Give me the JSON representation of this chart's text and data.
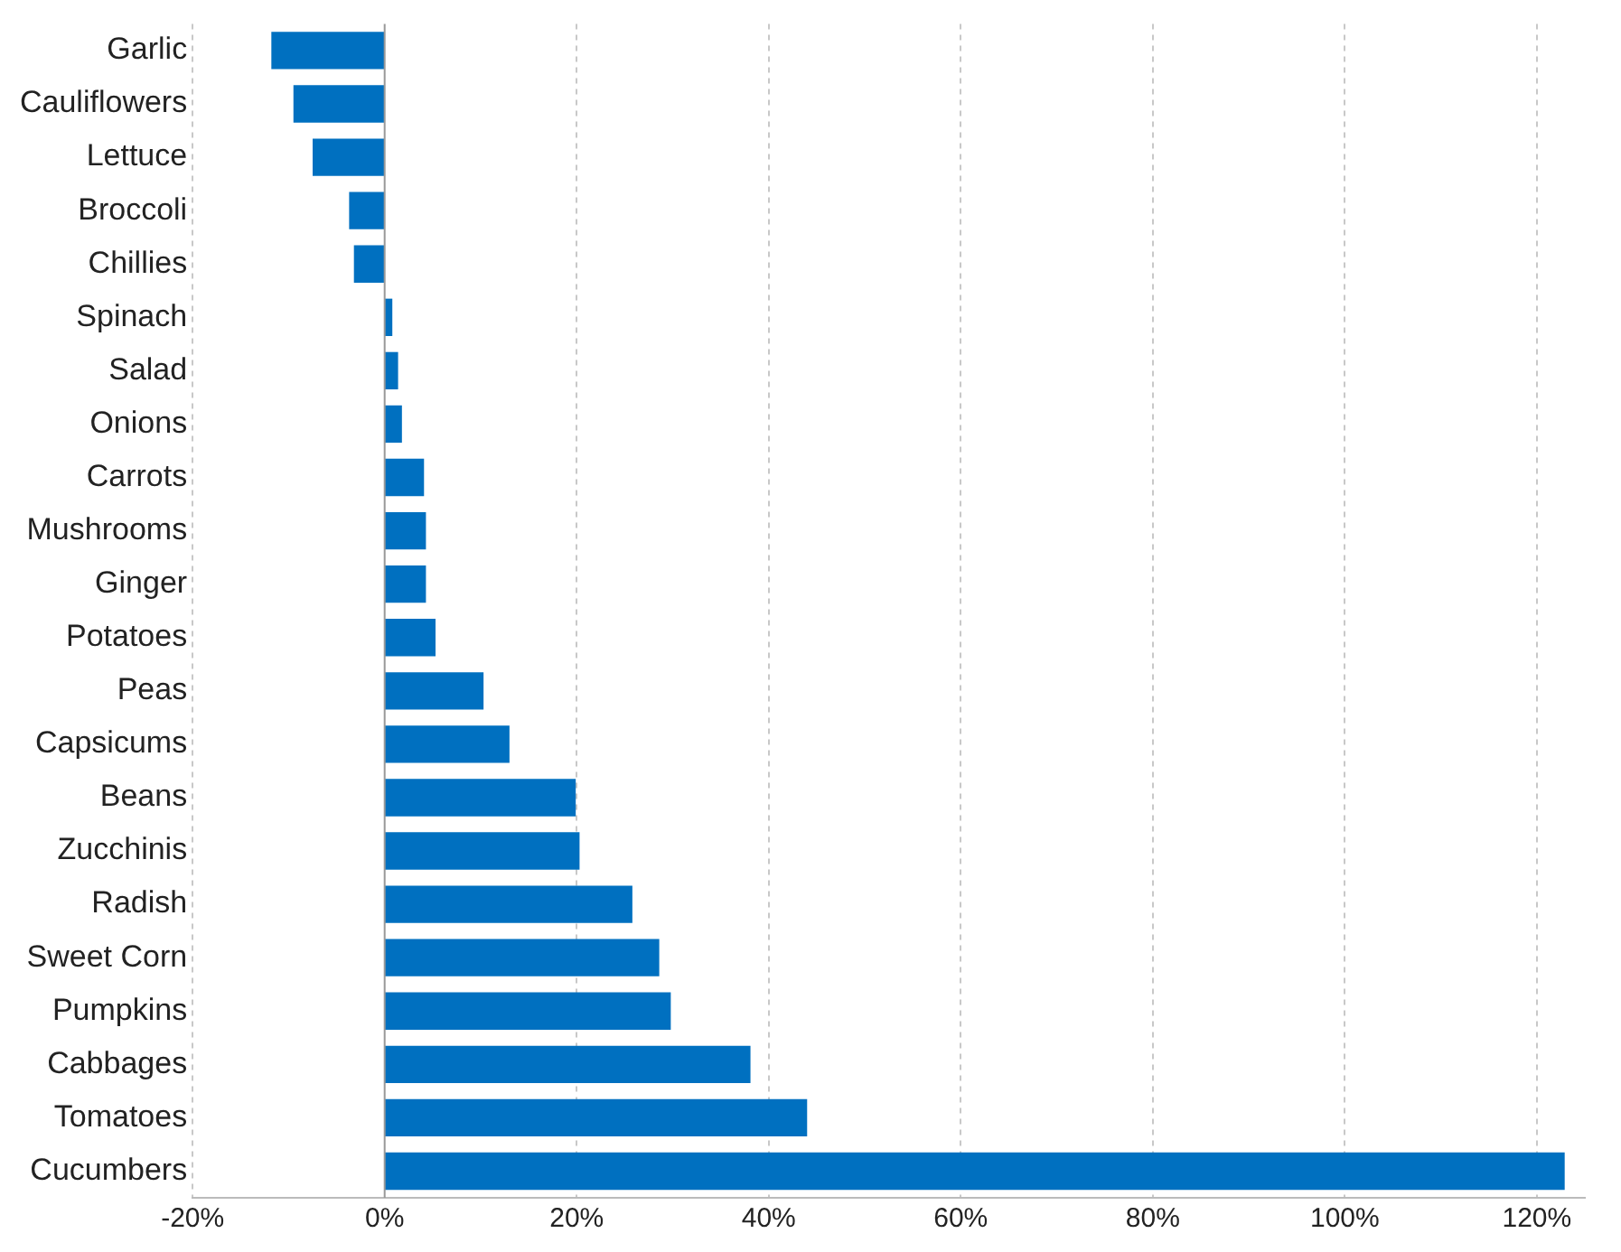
{
  "chart_data": {
    "type": "bar",
    "orientation": "horizontal",
    "categories": [
      "Garlic",
      "Cauliflowers",
      "Lettuce",
      "Broccoli",
      "Chillies",
      "Spinach",
      "Salad",
      "Onions",
      "Carrots",
      "Mushrooms",
      "Ginger",
      "Potatoes",
      "Peas",
      "Capsicums",
      "Beans",
      "Zucchinis",
      "Radish",
      "Sweet Corn",
      "Pumpkins",
      "Cabbages",
      "Tomatoes",
      "Cucumbers"
    ],
    "values": [
      -11.8,
      -9.5,
      -7.5,
      -3.7,
      -3.2,
      0.8,
      1.4,
      1.8,
      4.1,
      4.3,
      4.3,
      5.3,
      10.3,
      13,
      19.9,
      20.3,
      25.8,
      28.6,
      29.8,
      38.1,
      44,
      122.9
    ],
    "color": "#0070c0",
    "xlim": [
      -20,
      125
    ],
    "xticks": [
      {
        "value": -20,
        "label": "-20%"
      },
      {
        "value": 0,
        "label": "0%"
      },
      {
        "value": 20,
        "label": "20%"
      },
      {
        "value": 40,
        "label": "40%"
      },
      {
        "value": 60,
        "label": "60%"
      },
      {
        "value": 80,
        "label": "80%"
      },
      {
        "value": 100,
        "label": "100%"
      },
      {
        "value": 120,
        "label": "120%"
      }
    ],
    "grid": "x",
    "legend": false
  }
}
